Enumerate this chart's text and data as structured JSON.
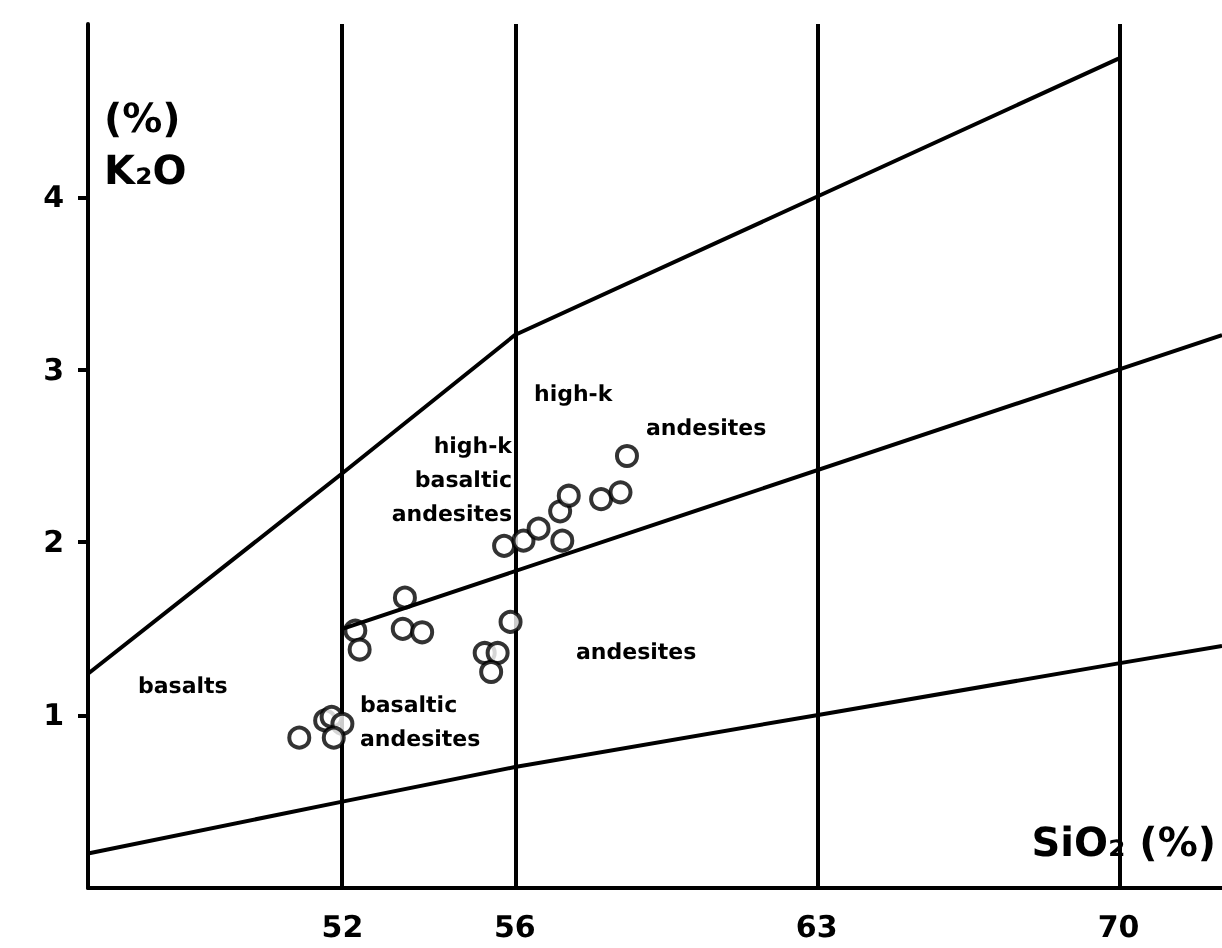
{
  "chart_data": {
    "type": "scatter",
    "xlabel": "SiO₂ (%)",
    "ylabel": "(%)\nK₂O",
    "xlim": [
      46.1,
      72.4
    ],
    "ylim": [
      0,
      5
    ],
    "xticks": [
      52,
      56,
      63,
      70
    ],
    "yticks": [
      1,
      2,
      3,
      4
    ],
    "grid": "x",
    "marker": "circle",
    "series": [
      {
        "type": "scatter",
        "color": "#000000",
        "x": [
          51.0,
          51.6,
          51.75,
          52.0,
          51.8,
          52.3,
          52.4,
          53.45,
          53.4,
          53.85,
          55.3,
          55.6,
          55.45,
          55.9,
          55.75,
          56.2,
          56.55,
          57.1,
          57.05,
          57.25,
          58.0,
          58.45,
          58.6
        ],
        "values": [
          0.87,
          0.97,
          0.99,
          0.95,
          0.87,
          1.49,
          1.38,
          1.68,
          1.5,
          1.48,
          1.36,
          1.36,
          1.25,
          1.54,
          1.98,
          2.01,
          2.08,
          2.01,
          2.18,
          2.27,
          2.25,
          2.29,
          2.5
        ]
      },
      {
        "type": "line",
        "color": "#000000",
        "marker": "none",
        "x": [
          46.1,
          52,
          56,
          70
        ],
        "values": [
          1.24,
          2.4,
          3.2,
          4.8
        ]
      },
      {
        "type": "line",
        "color": "#000000",
        "marker": "none",
        "x": [
          52,
          70,
          72.4
        ],
        "values": [
          1.5,
          3.0,
          3.2
        ]
      },
      {
        "type": "line",
        "color": "#000000",
        "marker": "none",
        "x": [
          46.1,
          52,
          56,
          63,
          70,
          72.4
        ],
        "values": [
          0.2,
          0.5,
          0.7,
          1.0,
          1.3,
          1.4
        ]
      }
    ],
    "annotations": [
      "basalts",
      "basaltic\nandesites",
      "high-k\nbasaltic\nandesites",
      "high-k",
      "andesites",
      "andesites"
    ]
  }
}
